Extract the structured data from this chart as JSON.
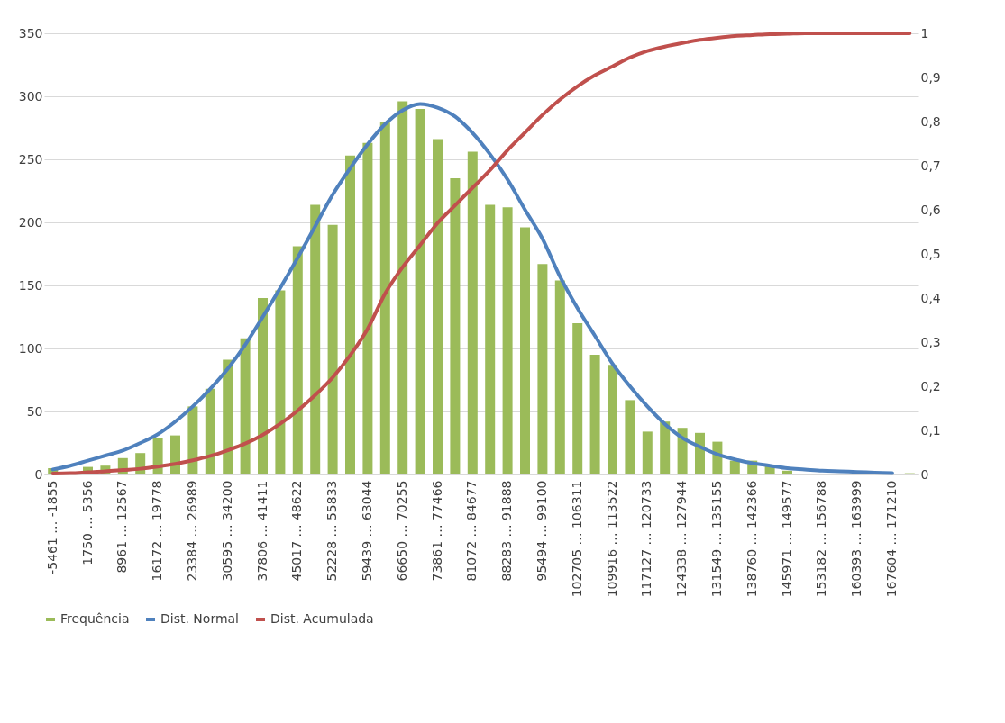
{
  "chart_data": {
    "type": "bar",
    "categories": [
      "-5461 … -1855",
      null,
      "1750 … 5356",
      null,
      "8961 … 12567",
      null,
      "16172 … 19778",
      null,
      "23384 … 26989",
      null,
      "30595 … 34200",
      null,
      "37806 … 41411",
      null,
      "45017 … 48622",
      null,
      "52228 … 55833",
      null,
      "59439 … 63044",
      null,
      "66650 … 70255",
      null,
      "73861 … 77466",
      null,
      "81072 … 84677",
      null,
      "88283 … 91888",
      null,
      "95494 … 99100",
      null,
      "102705 … 106311",
      null,
      "109916 … 113522",
      null,
      "117127 … 120733",
      null,
      "124338 … 127944",
      null,
      "131549 … 135155",
      null,
      "138760 … 142366",
      null,
      "145971 … 149577",
      null,
      "153182 … 156788",
      null,
      "160393 … 163999",
      null,
      "167604 … 171210",
      null
    ],
    "series": [
      {
        "name": "Frequência",
        "color": "#9bbb59",
        "values": [
          5,
          null,
          6,
          7,
          13,
          17,
          29,
          31,
          54,
          68,
          91,
          108,
          140,
          146,
          181,
          214,
          198,
          253,
          263,
          280,
          296,
          290,
          266,
          235,
          256,
          214,
          212,
          196,
          167,
          154,
          120,
          95,
          87,
          59,
          34,
          42,
          37,
          33,
          26,
          11,
          11,
          7,
          3,
          null,
          null,
          null,
          null,
          null,
          null,
          1
        ]
      },
      {
        "name": "Dist. Normal",
        "type": "line",
        "color": "#4f81bd",
        "values": [
          4,
          7,
          11,
          15,
          19,
          25,
          32,
          42,
          54,
          68,
          84,
          103,
          125,
          148,
          172,
          197,
          222,
          243,
          262,
          278,
          289,
          294,
          291,
          284,
          271,
          254,
          234,
          210,
          187,
          157,
          132,
          110,
          88,
          70,
          54,
          40,
          29,
          22,
          16,
          12,
          9,
          7,
          5,
          4,
          3,
          2.5,
          2,
          1.5,
          1,
          null
        ]
      },
      {
        "name": "Dist. Acumulada",
        "type": "line",
        "axis": "y2",
        "color": "#c0504d",
        "values": [
          0.002,
          0.003,
          0.005,
          0.007,
          0.01,
          0.013,
          0.018,
          0.024,
          0.032,
          0.042,
          0.055,
          0.07,
          0.09,
          0.115,
          0.145,
          0.18,
          0.22,
          0.27,
          0.33,
          0.41,
          0.47,
          0.52,
          0.57,
          0.61,
          0.65,
          0.69,
          0.735,
          0.775,
          0.815,
          0.85,
          0.88,
          0.905,
          0.925,
          0.945,
          0.96,
          0.97,
          0.978,
          0.985,
          0.99,
          0.994,
          0.996,
          0.998,
          0.999,
          1,
          1,
          1,
          1,
          1,
          1,
          1
        ]
      }
    ],
    "ylim": [
      0,
      350
    ],
    "yticks": [
      0,
      50,
      100,
      150,
      200,
      250,
      300,
      350
    ],
    "y2lim": [
      0,
      1
    ],
    "y2ticks": [
      0,
      {
        "value": 0.1,
        "label": "0,1"
      },
      {
        "value": 0.2,
        "label": "0,2"
      },
      {
        "value": 0.3,
        "label": "0,3"
      },
      {
        "value": 0.4,
        "label": "0,4"
      },
      {
        "value": 0.5,
        "label": "0,5"
      },
      {
        "value": 0.6,
        "label": "0,6"
      },
      {
        "value": 0.7,
        "label": "0,7"
      },
      {
        "value": 0.8,
        "label": "0,8"
      },
      {
        "value": 0.9,
        "label": "0,9"
      },
      1
    ],
    "grid": "y",
    "legend": "bottom",
    "marker": "none",
    "line_style": "solid"
  }
}
